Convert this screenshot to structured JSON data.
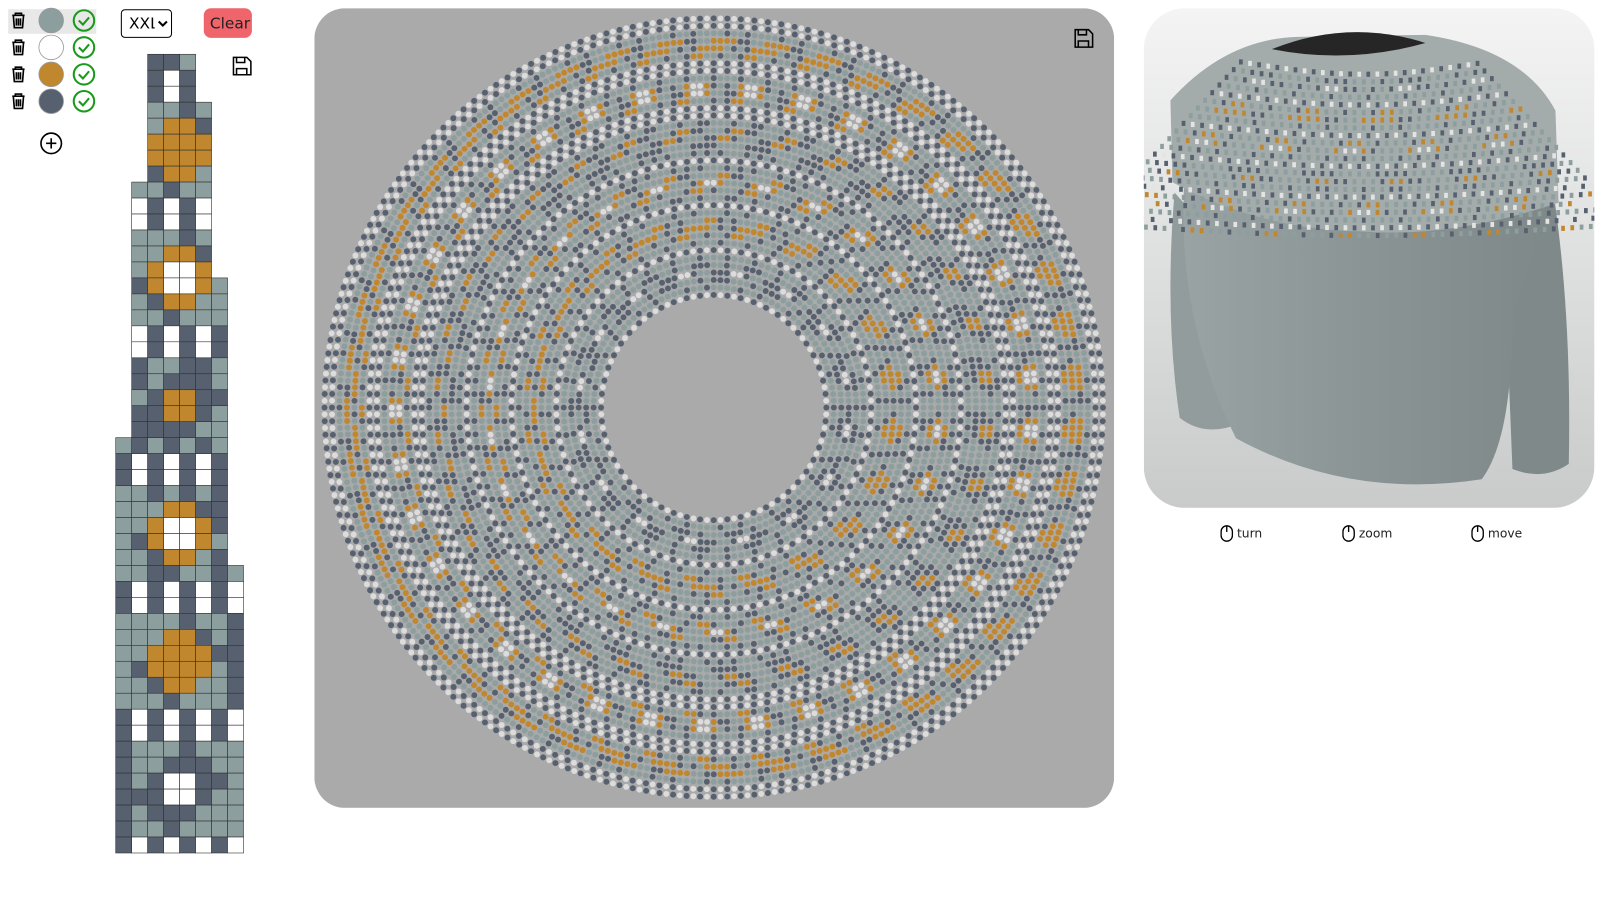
{
  "palette": [
    "#8d9e9e",
    "#ffffff",
    "#c0872e",
    "#56606f"
  ],
  "size_select": "XXL",
  "clear_button": "Clear",
  "controls": [
    "turn",
    "zoom",
    "move"
  ]
}
